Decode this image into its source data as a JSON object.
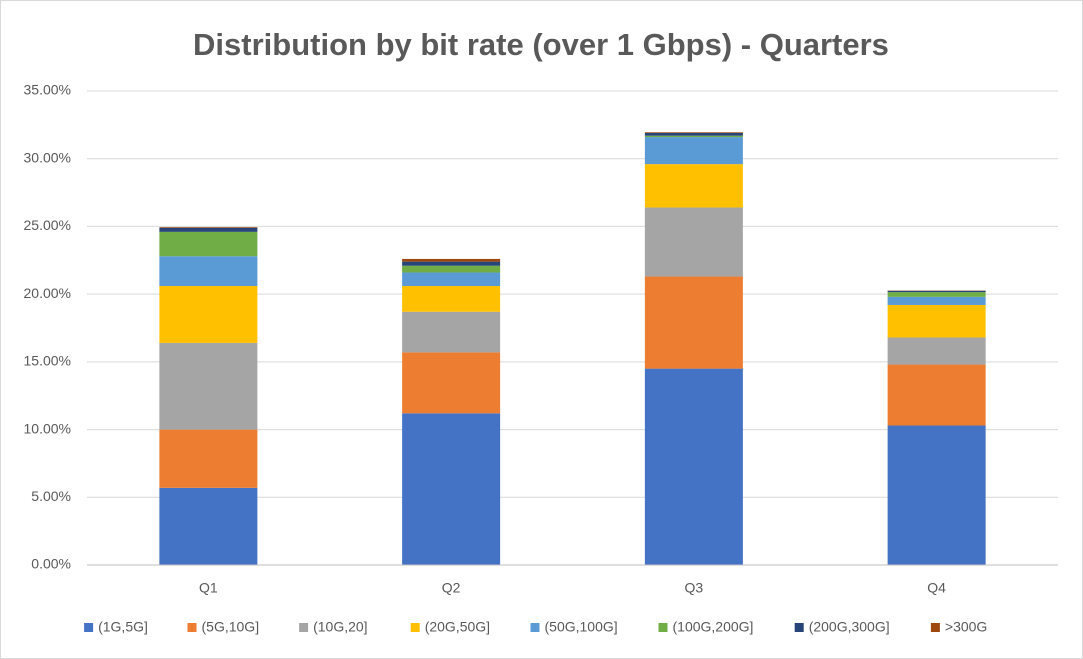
{
  "chart_data": {
    "type": "stacked_bar",
    "title": "Distribution by bit rate (over 1 Gbps) - Quarters",
    "categories": [
      "Q1",
      "Q2",
      "Q3",
      "Q4"
    ],
    "series": [
      {
        "name": "(1G,5G]",
        "color": "#4472c4",
        "values": [
          5.7,
          11.2,
          14.5,
          10.3
        ]
      },
      {
        "name": "(5G,10G]",
        "color": "#ed7d31",
        "values": [
          4.3,
          4.5,
          6.8,
          4.5
        ]
      },
      {
        "name": "(10G,20]",
        "color": "#a5a5a5",
        "values": [
          6.4,
          3.0,
          5.1,
          2.0
        ]
      },
      {
        "name": "(20G,50G]",
        "color": "#ffc000",
        "values": [
          4.2,
          1.9,
          3.2,
          2.4
        ]
      },
      {
        "name": "(50G,100G]",
        "color": "#5b9bd5",
        "values": [
          2.2,
          1.0,
          2.0,
          0.6
        ]
      },
      {
        "name": "(100G,200G]",
        "color": "#70ad47",
        "values": [
          1.8,
          0.5,
          0.1,
          0.35
        ]
      },
      {
        "name": "(200G,300G]",
        "color": "#264478",
        "values": [
          0.3,
          0.3,
          0.2,
          0.1
        ]
      },
      {
        "name": ">300G",
        "color": "#9e480e",
        "values": [
          0.05,
          0.2,
          0.05,
          0.02
        ]
      }
    ],
    "ylim": [
      0,
      35
    ],
    "yticks": [
      {
        "value": 0,
        "label": "0.00%"
      },
      {
        "value": 5,
        "label": "5.00%"
      },
      {
        "value": 10,
        "label": "10.00%"
      },
      {
        "value": 15,
        "label": "15.00%"
      },
      {
        "value": 20,
        "label": "20.00%"
      },
      {
        "value": 25,
        "label": "25.00%"
      },
      {
        "value": 30,
        "label": "30.00%"
      },
      {
        "value": 35,
        "label": "35.00%"
      }
    ],
    "grid": true
  }
}
